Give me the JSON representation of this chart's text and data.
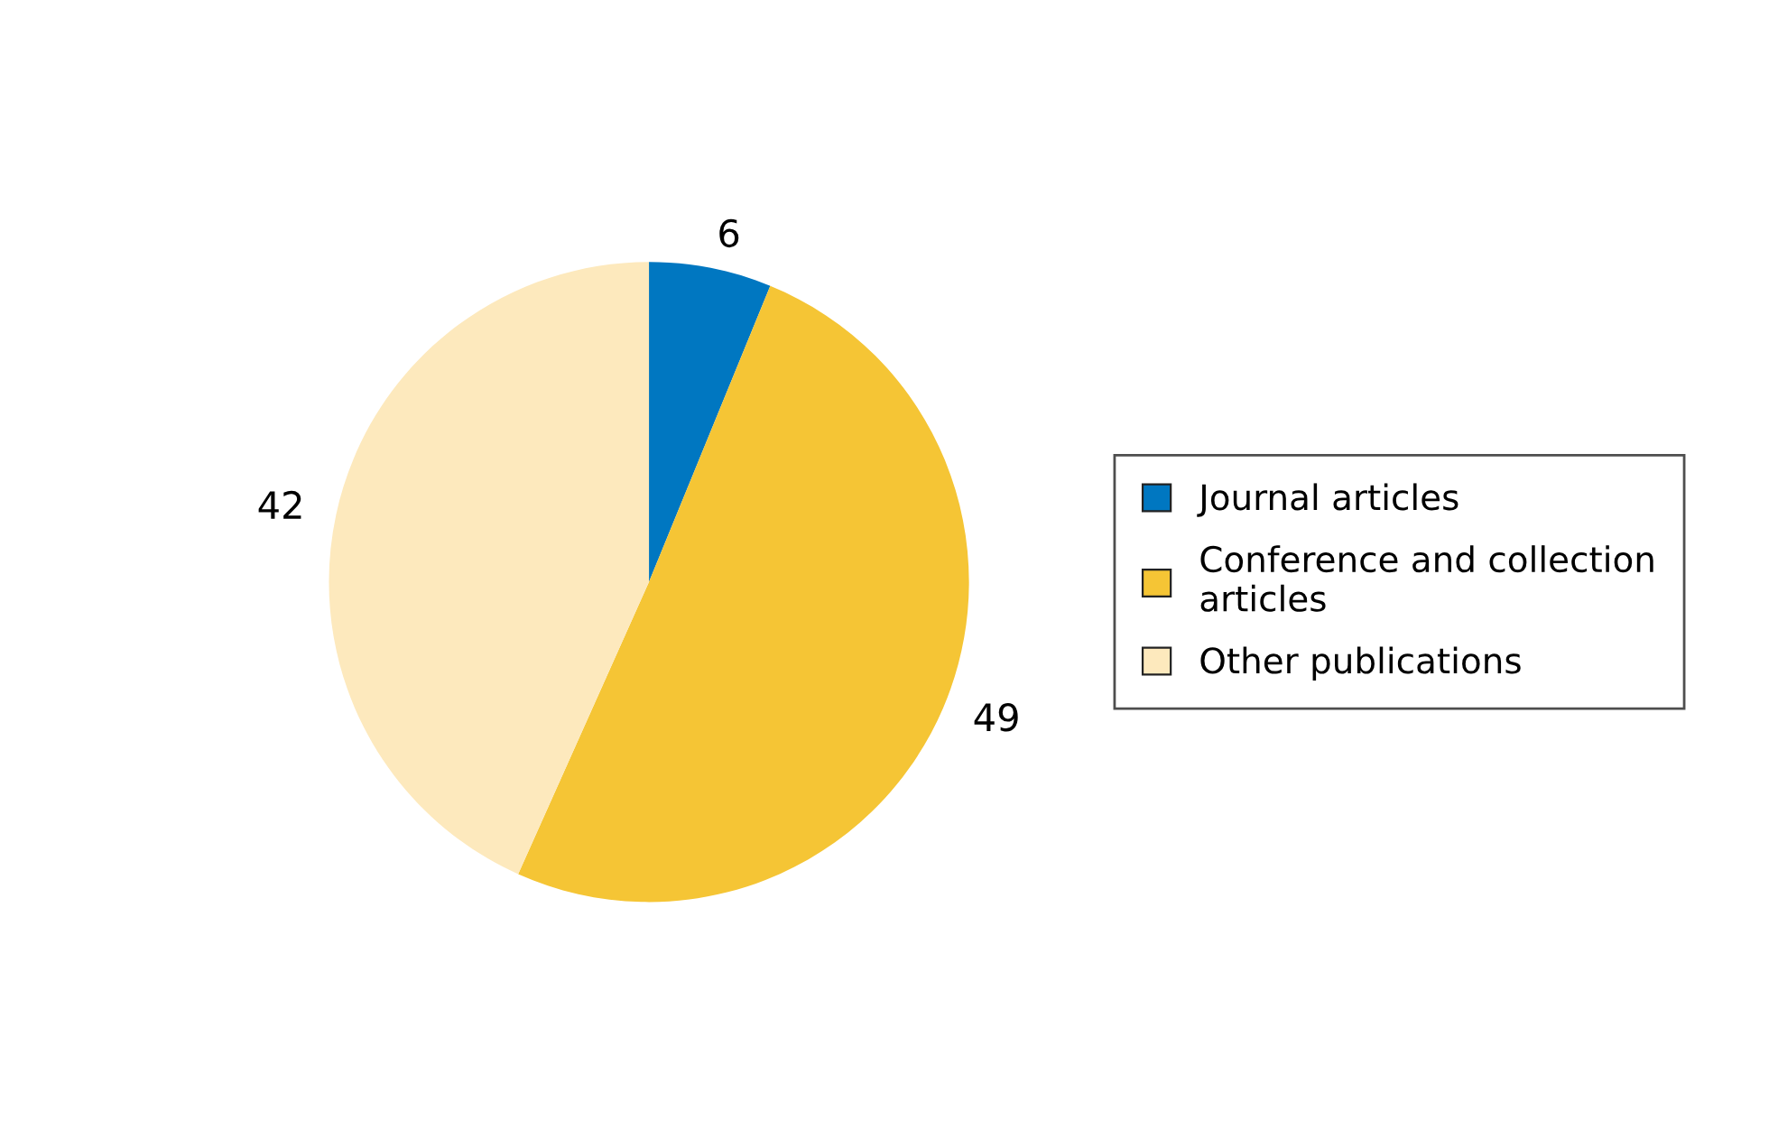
{
  "chart_data": {
    "type": "pie",
    "categories": [
      "Journal articles",
      "Conference and collection articles",
      "Other publications"
    ],
    "values": [
      6,
      49,
      42
    ],
    "colors": [
      "#0077c1",
      "#f5c535",
      "#fde9bd"
    ],
    "data_labels": true,
    "legend": "right"
  }
}
